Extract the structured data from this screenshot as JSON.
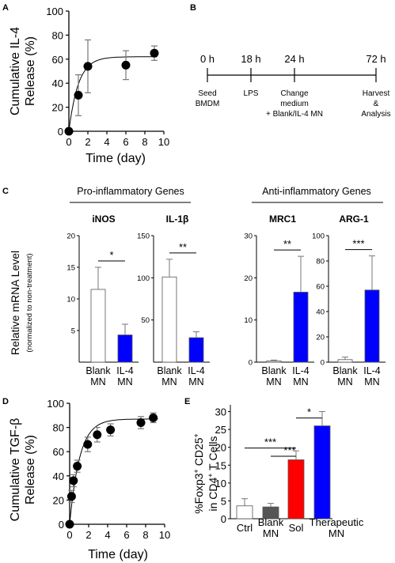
{
  "panels": {
    "A": {
      "letter": "A",
      "chart_data": {
        "type": "scatter",
        "ylabel_lines": [
          "Cumulative IL-4",
          "Release (%)"
        ],
        "xlabel": "Time (day)",
        "xlim": [
          0,
          10
        ],
        "ylim": [
          0,
          100
        ],
        "xticks": [
          0,
          2,
          4,
          6,
          8,
          10
        ],
        "yticks": [
          0,
          20,
          40,
          60,
          80,
          100
        ],
        "points": [
          {
            "x": 0,
            "y": 0,
            "err": 0
          },
          {
            "x": 1,
            "y": 30,
            "err": 17
          },
          {
            "x": 2,
            "y": 54,
            "err": 22
          },
          {
            "x": 6,
            "y": 55,
            "err": 12
          },
          {
            "x": 9,
            "y": 65,
            "err": 6
          }
        ],
        "fit": {
          "type": "saturation",
          "plateau": 62,
          "rate": 1.0
        }
      }
    },
    "B": {
      "letter": "B",
      "timeline": [
        {
          "time": "0 h",
          "label_lines": [
            "Seed",
            "BMDM"
          ]
        },
        {
          "time": "18 h",
          "label_lines": [
            "LPS"
          ]
        },
        {
          "time": "24 h",
          "label_lines": [
            "Change",
            "medium",
            "+ Blank/IL-4 MN"
          ]
        },
        {
          "time": "72 h",
          "label_lines": [
            "Harvest",
            "&",
            "Analysis"
          ]
        }
      ]
    },
    "C": {
      "letter": "C",
      "ylabel": "Relative mRNA Level",
      "ylabel_sub": "(normalized to non-treatment)",
      "groups": [
        {
          "title": "Pro-inflammatory Genes"
        },
        {
          "title": "Anti-inflammatory Genes"
        }
      ],
      "chart_data": [
        {
          "type": "bar",
          "title": "iNOS",
          "categories": [
            "Blank MN",
            "IL-4 MN"
          ],
          "values": [
            11.5,
            4.3
          ],
          "errors": [
            3.5,
            1.7
          ],
          "yticks": [
            5,
            10,
            15,
            20
          ],
          "ylim": [
            0,
            20
          ],
          "significance": "*",
          "colors": [
            "#ffffff",
            "#0000ff"
          ]
        },
        {
          "type": "bar",
          "title": "IL-1β",
          "categories": [
            "Blank MN",
            "IL-4 MN"
          ],
          "values": [
            101,
            29
          ],
          "errors": [
            21,
            7
          ],
          "yticks": [
            50,
            100,
            150
          ],
          "ylim": [
            0,
            150
          ],
          "significance": "**",
          "colors": [
            "#ffffff",
            "#0000ff"
          ]
        },
        {
          "type": "bar",
          "title": "MRC1",
          "categories": [
            "Blank MN",
            "IL-4 MN"
          ],
          "values": [
            0.3,
            16.6
          ],
          "errors": [
            0.2,
            8.5
          ],
          "yticks": [
            0,
            10,
            20,
            30
          ],
          "ylim": [
            0,
            30
          ],
          "significance": "**",
          "colors": [
            "#ffffff",
            "#0000ff"
          ]
        },
        {
          "type": "bar",
          "title": "ARG-1",
          "categories": [
            "Blank MN",
            "IL-4 MN"
          ],
          "values": [
            2,
            57
          ],
          "errors": [
            2,
            27
          ],
          "yticks": [
            0,
            20,
            40,
            60,
            80,
            100
          ],
          "ylim": [
            0,
            100
          ],
          "significance": "***",
          "colors": [
            "#ffffff",
            "#0000ff"
          ]
        }
      ]
    },
    "D": {
      "letter": "D",
      "chart_data": {
        "type": "scatter",
        "ylabel_lines": [
          "Cumulative TGF-β",
          "Release (%)"
        ],
        "xlabel": "Time (day)",
        "xlim": [
          0,
          10
        ],
        "ylim": [
          0,
          100
        ],
        "xticks": [
          0,
          2,
          4,
          6,
          8,
          10
        ],
        "yticks": [
          0,
          20,
          40,
          60,
          80,
          100
        ],
        "points": [
          {
            "x": 0,
            "y": 0,
            "err": 0
          },
          {
            "x": 0.2,
            "y": 23,
            "err": 5
          },
          {
            "x": 0.4,
            "y": 36,
            "err": 5
          },
          {
            "x": 0.8,
            "y": 48,
            "err": 5
          },
          {
            "x": 1.9,
            "y": 66,
            "err": 6
          },
          {
            "x": 2.9,
            "y": 74,
            "err": 6
          },
          {
            "x": 4.3,
            "y": 78,
            "err": 5
          },
          {
            "x": 7.5,
            "y": 84,
            "err": 5
          },
          {
            "x": 8.8,
            "y": 88,
            "err": 4
          }
        ],
        "fit": {
          "type": "saturation",
          "plateau": 87,
          "rate": 0.95
        }
      }
    },
    "E": {
      "letter": "E",
      "chart_data": {
        "type": "bar",
        "ylabel": "%Foxp3⁺ CD25⁺ in CD4⁺ T Cells",
        "ylabel_lines": [
          "%Foxp3",
          "+",
          " CD25",
          "+",
          "in CD4",
          "+",
          " T Cells"
        ],
        "categories": [
          "Ctrl",
          "Blank MN",
          "Sol",
          "Therapeutic MN"
        ],
        "values": [
          3.6,
          3.3,
          16.5,
          26
        ],
        "errors": [
          2.0,
          1.0,
          2.5,
          4
        ],
        "colors": [
          "#ffffff",
          "#555555",
          "#ff0000",
          "#0000ff"
        ],
        "yticks": [
          0,
          5,
          10,
          15,
          20,
          25,
          30
        ],
        "ylim": [
          0,
          31
        ],
        "significance": [
          {
            "from": "Ctrl",
            "to": "Sol",
            "label": "***"
          },
          {
            "from": "Blank MN",
            "to": "Sol",
            "label": "***"
          },
          {
            "from": "Sol",
            "to": "Therapeutic MN",
            "label": "*"
          }
        ]
      }
    }
  }
}
